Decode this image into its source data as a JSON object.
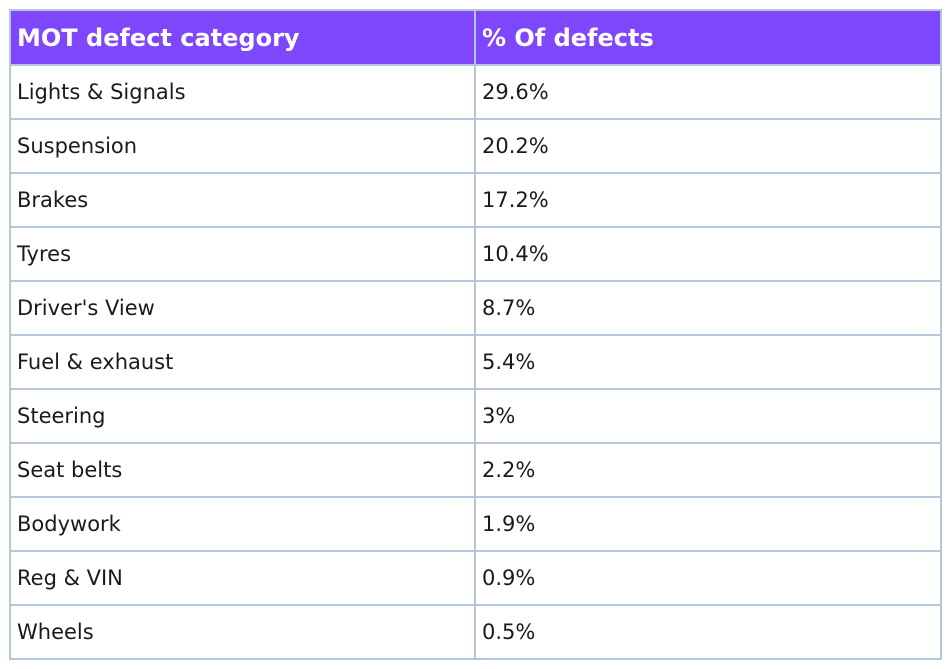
{
  "table": {
    "headers": [
      "MOT defect category",
      "% Of defects"
    ],
    "rows": [
      [
        "Lights & Signals",
        "29.6%"
      ],
      [
        "Suspension",
        "20.2%"
      ],
      [
        "Brakes",
        "17.2%"
      ],
      [
        "Tyres",
        "10.4%"
      ],
      [
        "Driver's View",
        "8.7%"
      ],
      [
        "Fuel & exhaust",
        "5.4%"
      ],
      [
        "Steering",
        "3%"
      ],
      [
        "Seat belts",
        "2.2%"
      ],
      [
        "Bodywork",
        "1.9%"
      ],
      [
        "Reg & VIN",
        "0.9%"
      ],
      [
        "Wheels",
        "0.5%"
      ]
    ]
  },
  "colors": {
    "header_background": "#7f47fb",
    "header_text": "#ffffff",
    "grid_line": "#b7c7da",
    "body_text": "#1a1a1a"
  }
}
